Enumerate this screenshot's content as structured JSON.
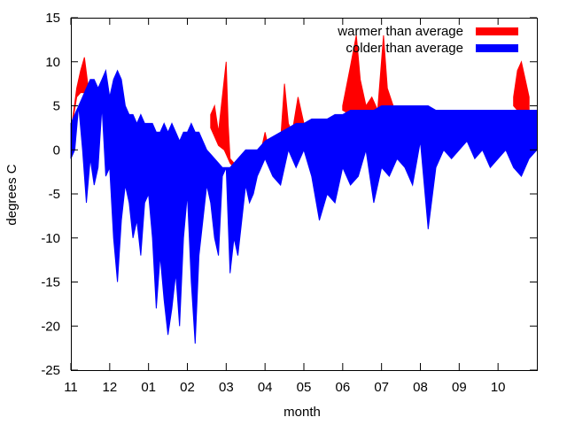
{
  "chart_data": {
    "type": "area",
    "title": "",
    "xlabel": "month",
    "ylabel": "degrees C",
    "ylim": [
      -25,
      15
    ],
    "yticks": [
      -25,
      -20,
      -15,
      -10,
      -5,
      0,
      5,
      10,
      15
    ],
    "x_categories": [
      "11",
      "12",
      "01",
      "02",
      "03",
      "04",
      "05",
      "06",
      "07",
      "08",
      "09",
      "10"
    ],
    "x_unit": "month index (0 = start of month 11)",
    "xlim": [
      0,
      12
    ],
    "grid": false,
    "legend_position": "top-right",
    "series": [
      {
        "name": "warmer than average",
        "color": "#ff0000",
        "x": [
          0.0,
          0.15,
          0.25,
          0.35,
          0.45,
          3.6,
          3.7,
          3.8,
          3.95,
          4.0,
          4.05,
          4.1,
          4.2,
          4.3,
          4.4,
          4.5,
          4.6,
          4.75,
          4.9,
          5.0,
          5.1,
          5.2,
          5.3,
          5.4,
          5.5,
          5.6,
          5.7,
          5.85,
          5.9,
          6.0,
          7.0,
          7.2,
          7.35,
          7.45,
          7.6,
          7.75,
          7.9,
          8.05,
          8.15,
          8.3,
          9.0,
          11.4,
          11.5,
          11.6,
          11.7,
          11.8
        ],
        "actual": [
          2,
          7,
          9,
          10.5,
          7,
          4,
          5,
          2,
          8,
          10,
          3,
          -1,
          -1.5,
          -2,
          -2,
          -1.5,
          -1,
          -0.5,
          0,
          2,
          0,
          -0.5,
          -1,
          1,
          7.5,
          3,
          2,
          6,
          5,
          3,
          5,
          9.5,
          13,
          8,
          5,
          6,
          4.5,
          13,
          7,
          5,
          5,
          6,
          9,
          10,
          8,
          6
        ],
        "average": [
          2,
          6,
          6.5,
          6.5,
          6.5,
          2.5,
          1.5,
          0.5,
          0,
          -0.5,
          -1,
          -1.5,
          -2,
          -2,
          -2,
          -1.5,
          -1,
          -0.5,
          0,
          0.5,
          0,
          -0.5,
          -0.5,
          0,
          1,
          1.5,
          2,
          2.5,
          2.5,
          3,
          4.5,
          4,
          4.5,
          4.5,
          4.5,
          4.5,
          4,
          4.5,
          4.5,
          4.5,
          5,
          5,
          4.5,
          4.5,
          4.5,
          4.5
        ]
      },
      {
        "name": "colder than average",
        "color": "#0000ff",
        "x": [
          0.0,
          0.1,
          0.2,
          0.3,
          0.4,
          0.5,
          0.6,
          0.7,
          0.8,
          0.9,
          1.0,
          1.1,
          1.2,
          1.3,
          1.4,
          1.5,
          1.6,
          1.7,
          1.8,
          1.9,
          2.0,
          2.1,
          2.2,
          2.3,
          2.4,
          2.5,
          2.6,
          2.7,
          2.8,
          2.9,
          3.0,
          3.1,
          3.2,
          3.3,
          3.4,
          3.5,
          3.6,
          3.7,
          3.8,
          3.9,
          4.0,
          4.1,
          4.2,
          4.3,
          4.4,
          4.5,
          4.6,
          4.7,
          4.8,
          4.9,
          5.0,
          5.2,
          5.4,
          5.6,
          5.8,
          6.0,
          6.2,
          6.4,
          6.6,
          6.8,
          7.0,
          7.2,
          7.4,
          7.6,
          7.8,
          8.0,
          8.2,
          8.4,
          8.6,
          8.8,
          9.0,
          9.2,
          9.4,
          9.6,
          9.8,
          10.0,
          10.2,
          10.4,
          10.6,
          10.8,
          11.0,
          11.2,
          11.4,
          11.6,
          11.8,
          12.0
        ],
        "actual": [
          -1,
          0,
          5,
          0,
          -6,
          -1,
          -4,
          -2,
          5,
          -3,
          -2,
          -10,
          -15,
          -8,
          -4,
          -6,
          -10,
          -8,
          -12,
          -6,
          -5,
          -10,
          -18,
          -12,
          -17,
          -21,
          -18,
          -14,
          -20,
          -10,
          -5,
          -15,
          -22,
          -12,
          -8,
          -4,
          -6,
          -10,
          -12,
          -3,
          -2,
          -14,
          -10,
          -12,
          -8,
          -4,
          -6,
          -5,
          -3,
          -2,
          -1,
          -3,
          -4,
          0,
          -2,
          0,
          -3,
          -8,
          -5,
          -6,
          -2,
          -4,
          -3,
          0,
          -6,
          -2,
          -3,
          -1,
          -2,
          -4,
          1,
          -9,
          -2,
          0,
          -1,
          0,
          1,
          -1,
          0,
          -2,
          -1,
          0,
          -2,
          -3,
          -1,
          0
        ],
        "average": [
          3,
          4,
          5,
          6,
          7,
          8,
          8,
          7,
          8,
          9,
          6,
          8,
          9,
          8,
          5,
          4,
          4,
          3,
          4,
          3,
          3,
          3,
          2,
          2,
          3,
          2,
          3,
          2,
          1,
          2,
          2,
          3,
          2,
          2,
          1,
          0,
          -0.5,
          -1,
          -1.5,
          -2,
          -2,
          -2,
          -1.5,
          -1,
          -0.5,
          0,
          0,
          0,
          0,
          0.5,
          1,
          1.5,
          2,
          2.5,
          3,
          3,
          3.5,
          3.5,
          3.5,
          4,
          4,
          4.5,
          4.5,
          4.5,
          4.5,
          5,
          5,
          5,
          5,
          5,
          5,
          5,
          4.5,
          4.5,
          4.5,
          4.5,
          4.5,
          4.5,
          4.5,
          4.5,
          4.5,
          4.5,
          4.5,
          4.5,
          4.5,
          4.5
        ]
      }
    ]
  }
}
